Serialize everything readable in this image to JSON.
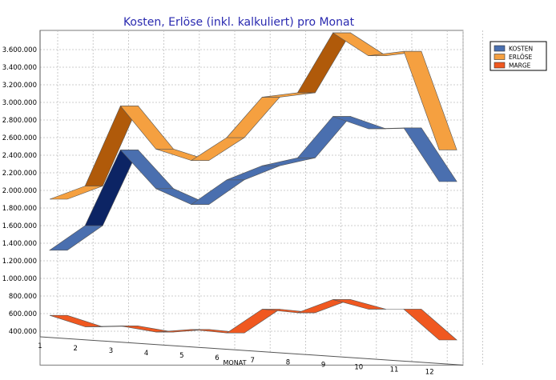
{
  "chart_data": {
    "type": "line",
    "title": "Kosten, Erlöse (inkl. kalkuliert) pro Monat",
    "xlabel": "MONAT",
    "ylabel": "",
    "categories": [
      "1",
      "2",
      "3",
      "4",
      "5",
      "6",
      "7",
      "8",
      "9",
      "10",
      "11",
      "12"
    ],
    "yticks": [
      "400.000",
      "600.000",
      "800.000",
      "1.000.000",
      "1.200.000",
      "1.400.000",
      "1.600.000",
      "1.800.000",
      "2.000.000",
      "2.200.000",
      "2.400.000",
      "2.600.000",
      "2.800.000",
      "3.000.000",
      "3.200.000",
      "3.400.000",
      "3.600.000"
    ],
    "ylim": [
      300000,
      3750000
    ],
    "grid": true,
    "legend_position": "top-right",
    "series": [
      {
        "name": "KOSTEN",
        "color": "#4a6faf",
        "dark": "#0c2464",
        "values": [
          1320000,
          1600000,
          2460000,
          2020000,
          1840000,
          2120000,
          2280000,
          2370000,
          2840000,
          2700000,
          2710000,
          2100000
        ]
      },
      {
        "name": "ERLÖSE",
        "color": "#f5a040",
        "dark": "#b05a0a",
        "values": [
          1900000,
          2050000,
          2960000,
          2470000,
          2340000,
          2600000,
          3060000,
          3110000,
          3790000,
          3530000,
          3580000,
          2460000
        ]
      },
      {
        "name": "MARGE",
        "color": "#f05820",
        "dark": "#a83010",
        "values": [
          580000,
          450000,
          460000,
          390000,
          420000,
          380000,
          650000,
          610000,
          760000,
          650000,
          650000,
          300000
        ]
      }
    ]
  }
}
